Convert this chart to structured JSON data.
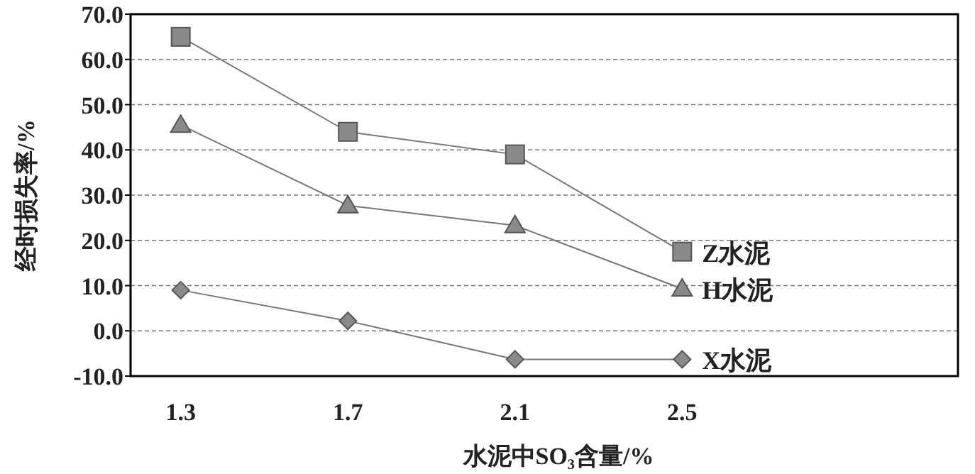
{
  "chart_data": {
    "type": "line",
    "xlabel": "水泥中SO₃含量/%",
    "ylabel": "经时损失率/%",
    "categories": [
      "1.3",
      "1.7",
      "2.1",
      "2.5"
    ],
    "ylim": [
      -10,
      70
    ],
    "yticks": [
      {
        "value": -10,
        "label": "-10.0"
      },
      {
        "value": 0,
        "label": "0.0"
      },
      {
        "value": 10,
        "label": "10.0"
      },
      {
        "value": 20,
        "label": "20.0"
      },
      {
        "value": 30,
        "label": "30.0"
      },
      {
        "value": 40,
        "label": "40.0"
      },
      {
        "value": 50,
        "label": "50.0"
      },
      {
        "value": 60,
        "label": "60.0"
      },
      {
        "value": 70,
        "label": "70.0"
      }
    ],
    "grid": "y",
    "line_style": "solid",
    "series": [
      {
        "name": "Z水泥",
        "color": "#8a8a8a",
        "marker": "square",
        "values": [
          65,
          44,
          39,
          17.5
        ]
      },
      {
        "name": "H水泥",
        "color": "#8a8a8a",
        "marker": "triangle",
        "values": [
          45.5,
          27.7,
          23.3,
          9.3
        ]
      },
      {
        "name": "X水泥",
        "color": "#8a8a8a",
        "marker": "diamond",
        "values": [
          9,
          2.2,
          -6.3,
          -6.3
        ]
      }
    ]
  }
}
